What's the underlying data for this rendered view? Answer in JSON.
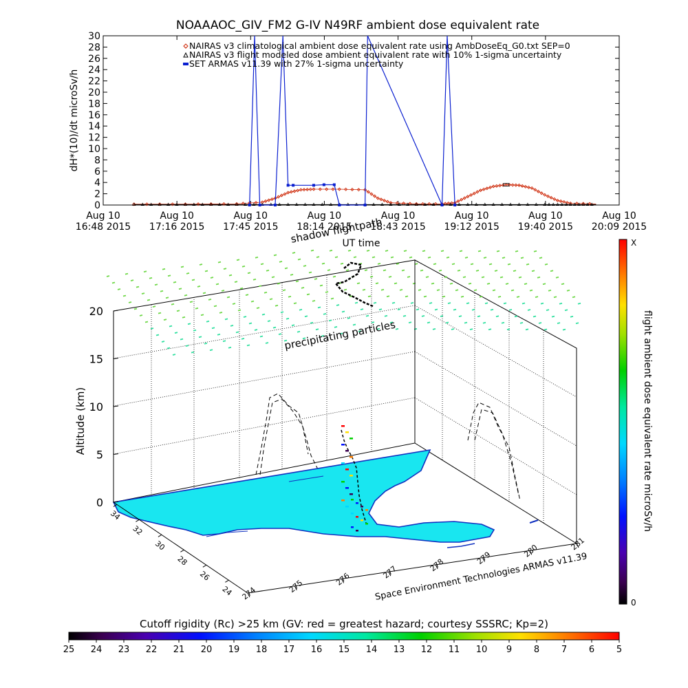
{
  "top_chart": {
    "title": "NOAAAOC_GIV_FM2 G-IV    N49RF  ambient dose equivalent rate",
    "ylabel": "dH*(10)/dt microSv/h",
    "xlabel": "UT time",
    "y_ticks": [
      0,
      2,
      4,
      6,
      8,
      10,
      12,
      14,
      16,
      18,
      20,
      22,
      24,
      26,
      28,
      30
    ],
    "ylim": [
      0,
      30
    ],
    "x_ticks": [
      {
        "top": "Aug 10",
        "bottom": "16:48 2015"
      },
      {
        "top": "Aug 10",
        "bottom": "17:16 2015"
      },
      {
        "top": "Aug 10",
        "bottom": "17:45 2015"
      },
      {
        "top": "Aug 10",
        "bottom": "18:14 2015"
      },
      {
        "top": "Aug 10",
        "bottom": "18:43 2015"
      },
      {
        "top": "Aug 10",
        "bottom": "19:12 2015"
      },
      {
        "top": "Aug 10",
        "bottom": "19:40 2015"
      },
      {
        "top": "Aug 10",
        "bottom": "20:09 2015"
      }
    ],
    "legend": [
      {
        "label": "NAIRAS v3 climatological ambient dose equivalent rate using AmbDoseEq_G0.txt SEP=0",
        "color": "#cc2200",
        "marker": "diamond"
      },
      {
        "label": "NAIRAS v3 flight modeled dose ambient equivalent rate with 10% 1-sigma uncertainty",
        "color": "#000000",
        "marker": "triangle"
      },
      {
        "label": "SET ARMAS v11.39 with 27% 1-sigma uncertainty",
        "color": "#0a1fd0",
        "marker": "square"
      }
    ]
  },
  "chart_data": [
    {
      "type": "line",
      "title": "NOAAAOC_GIV_FM2 G-IV    N49RF  ambient dose equivalent rate",
      "xlabel": "UT time",
      "ylabel": "dH*(10)/dt microSv/h",
      "ylim": [
        0,
        30
      ],
      "xlim": [
        "16:48",
        "20:09"
      ],
      "series": [
        {
          "name": "NAIRAS v3 climatological ambient dose equivalent rate using AmbDoseEq_G0.txt SEP=0",
          "color": "#cc2200",
          "x": [
            "17:00",
            "17:20",
            "17:40",
            "17:50",
            "17:55",
            "18:00",
            "18:05",
            "18:10",
            "18:20",
            "18:30",
            "18:35",
            "18:40",
            "18:50",
            "19:00",
            "19:05",
            "19:10",
            "19:15",
            "19:20",
            "19:25",
            "19:30",
            "19:35",
            "19:40",
            "19:45",
            "19:50",
            "20:00"
          ],
          "y": [
            0.15,
            0.15,
            0.2,
            0.5,
            1.2,
            2.2,
            2.7,
            2.8,
            2.8,
            2.7,
            1.2,
            0.4,
            0.2,
            0.2,
            0.4,
            1.5,
            2.6,
            3.3,
            3.6,
            3.5,
            3.0,
            1.8,
            0.8,
            0.3,
            0.2
          ]
        },
        {
          "name": "NAIRAS v3 flight modeled dose ambient equivalent rate with 10% 1-sigma uncertainty",
          "color": "#000000",
          "x": [
            "17:00",
            "17:40",
            "18:20",
            "19:00",
            "19:40",
            "20:00"
          ],
          "y": [
            0.1,
            0.1,
            0.1,
            0.1,
            0.1,
            0.1
          ]
        },
        {
          "name": "SET ARMAS v11.39 with 27% 1-sigma uncertainty",
          "color": "#0a1fd0",
          "x": [
            "17:45",
            "17:47",
            "17:49",
            "17:55",
            "17:58",
            "18:00",
            "18:02",
            "18:10",
            "18:14",
            "18:18",
            "18:20",
            "18:30",
            "18:31",
            "19:00",
            "19:02",
            "19:05"
          ],
          "y": [
            0,
            30,
            0,
            0,
            30,
            3.5,
            3.5,
            3.5,
            3.6,
            3.6,
            0,
            0,
            30,
            0,
            30,
            0
          ]
        }
      ]
    },
    {
      "type": "scatter",
      "title": "",
      "xlabel": "Space Environment Technologies ARMAS v11.39",
      "ylabel": "Altitude (km)",
      "z_ticks": [
        0,
        5,
        10,
        15,
        20
      ],
      "lon_ticks": [
        274,
        275,
        276,
        277,
        278,
        279,
        280,
        281
      ],
      "lat_ticks": [
        24,
        26,
        28,
        30,
        32,
        34
      ],
      "annotations": [
        "shadow flightpath",
        "precipitating particles"
      ],
      "colorbar": {
        "label": "flight ambient dose equivalent rate microSv/h",
        "top_label": "X",
        "bottom_label": "0"
      }
    }
  ],
  "bottom_colorbar": {
    "title": "Cutoff rigidity (Rc) >25 km (GV: red = greatest hazard; courtesy SSSRC; Kp=2)",
    "ticks": [
      25,
      24,
      23,
      22,
      21,
      20,
      19,
      18,
      17,
      16,
      15,
      14,
      13,
      12,
      11,
      10,
      9,
      8,
      7,
      6,
      5
    ]
  },
  "colors": {
    "land": "#19e6f0",
    "coast": "#1030c0",
    "particles": "#6fd848",
    "particles_low": "#30e0a0"
  }
}
